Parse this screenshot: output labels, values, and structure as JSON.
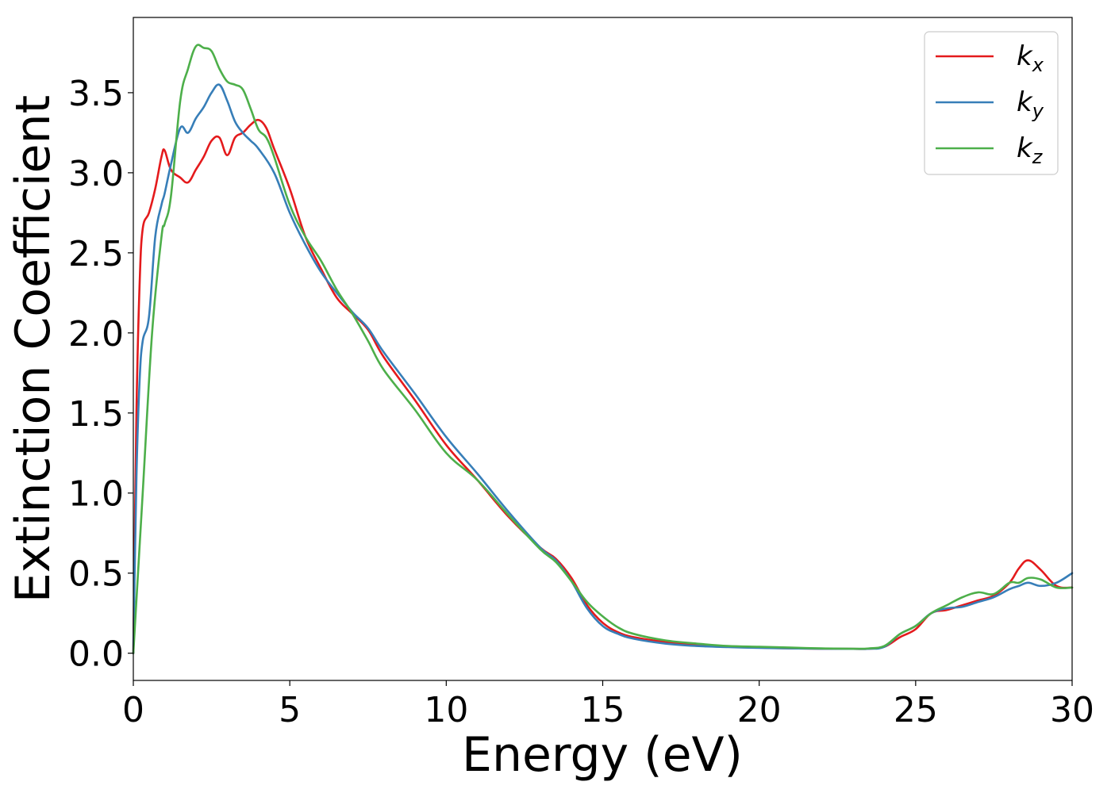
{
  "chart_data": {
    "type": "line",
    "title": "",
    "xlabel": "Energy (eV)",
    "ylabel": "Extinction Coefficient",
    "xlim": [
      0,
      30
    ],
    "ylim": [
      -0.17,
      3.97
    ],
    "xticks": [
      0,
      5,
      10,
      15,
      20,
      25,
      30
    ],
    "yticks": [
      0.0,
      0.5,
      1.0,
      1.5,
      2.0,
      2.5,
      3.0,
      3.5
    ],
    "xtick_labels": [
      "0",
      "5",
      "10",
      "15",
      "20",
      "25",
      "30"
    ],
    "ytick_labels": [
      "0.0",
      "0.5",
      "1.0",
      "1.5",
      "2.0",
      "2.5",
      "3.0",
      "3.5"
    ],
    "grid": false,
    "legend_position": "top-right",
    "series": [
      {
        "name": "k_x",
        "legend_base": "k",
        "legend_sub": "x",
        "color": "#e41a1c",
        "x": [
          0,
          0.1,
          0.2,
          0.3,
          0.5,
          0.7,
          0.9,
          1.0,
          1.2,
          1.5,
          1.75,
          2.0,
          2.25,
          2.5,
          2.75,
          3.0,
          3.25,
          3.5,
          3.75,
          4.0,
          4.25,
          4.5,
          5.0,
          5.5,
          6.0,
          6.5,
          7.0,
          7.5,
          8.0,
          9.0,
          10.0,
          11.0,
          12.0,
          13.0,
          13.5,
          14.0,
          14.5,
          15.0,
          15.5,
          16.0,
          17.0,
          18.0,
          19.0,
          20.0,
          21.0,
          22.0,
          23.0,
          23.5,
          24.0,
          24.5,
          25.0,
          25.5,
          26.0,
          26.5,
          27.0,
          27.5,
          28.0,
          28.3,
          28.6,
          29.0,
          29.5,
          30.0
        ],
        "y": [
          0.0,
          1.5,
          2.3,
          2.65,
          2.75,
          2.9,
          3.1,
          3.14,
          3.02,
          2.97,
          2.94,
          3.02,
          3.1,
          3.2,
          3.22,
          3.11,
          3.22,
          3.25,
          3.3,
          3.33,
          3.28,
          3.15,
          2.9,
          2.6,
          2.4,
          2.22,
          2.12,
          2.02,
          1.85,
          1.58,
          1.3,
          1.08,
          0.85,
          0.66,
          0.59,
          0.47,
          0.3,
          0.19,
          0.13,
          0.1,
          0.07,
          0.05,
          0.04,
          0.035,
          0.03,
          0.028,
          0.027,
          0.028,
          0.04,
          0.1,
          0.15,
          0.25,
          0.27,
          0.3,
          0.33,
          0.36,
          0.44,
          0.53,
          0.58,
          0.52,
          0.42,
          0.41
        ]
      },
      {
        "name": "k_y",
        "legend_base": "k",
        "legend_sub": "y",
        "color": "#377eb8",
        "x": [
          0,
          0.1,
          0.2,
          0.3,
          0.5,
          0.7,
          0.9,
          1.0,
          1.2,
          1.5,
          1.75,
          2.0,
          2.25,
          2.5,
          2.75,
          3.0,
          3.25,
          3.5,
          3.75,
          4.0,
          4.5,
          5.0,
          5.5,
          6.0,
          6.5,
          7.0,
          7.5,
          8.0,
          9.0,
          10.0,
          11.0,
          12.0,
          13.0,
          13.5,
          14.0,
          14.5,
          15.0,
          15.5,
          16.0,
          17.0,
          18.0,
          19.0,
          20.0,
          21.0,
          22.0,
          23.0,
          23.5,
          24.0,
          24.5,
          25.0,
          25.5,
          26.0,
          26.5,
          27.0,
          27.5,
          28.0,
          28.3,
          28.6,
          29.0,
          29.5,
          30.0
        ],
        "y": [
          0.0,
          1.1,
          1.7,
          1.95,
          2.1,
          2.6,
          2.8,
          2.87,
          3.05,
          3.28,
          3.25,
          3.34,
          3.41,
          3.5,
          3.55,
          3.45,
          3.32,
          3.25,
          3.2,
          3.15,
          3.0,
          2.75,
          2.55,
          2.38,
          2.25,
          2.13,
          2.03,
          1.88,
          1.62,
          1.35,
          1.12,
          0.88,
          0.66,
          0.58,
          0.45,
          0.28,
          0.17,
          0.12,
          0.09,
          0.06,
          0.045,
          0.038,
          0.033,
          0.03,
          0.028,
          0.027,
          0.028,
          0.04,
          0.12,
          0.17,
          0.25,
          0.28,
          0.29,
          0.32,
          0.35,
          0.4,
          0.42,
          0.44,
          0.42,
          0.44,
          0.5
        ]
      },
      {
        "name": "k_z",
        "legend_base": "k",
        "legend_sub": "z",
        "color": "#4daf4a",
        "x": [
          0,
          0.3,
          0.6,
          0.9,
          1.0,
          1.2,
          1.5,
          1.75,
          2.0,
          2.25,
          2.5,
          2.75,
          3.0,
          3.25,
          3.5,
          3.75,
          4.0,
          4.25,
          4.5,
          5.0,
          5.5,
          6.0,
          6.5,
          7.0,
          7.5,
          8.0,
          9.0,
          10.0,
          11.0,
          12.0,
          13.0,
          13.5,
          14.0,
          14.5,
          15.0,
          15.5,
          16.0,
          17.0,
          18.0,
          19.0,
          20.0,
          21.0,
          22.0,
          23.0,
          23.5,
          24.0,
          24.5,
          25.0,
          25.5,
          26.0,
          26.5,
          27.0,
          27.5,
          28.0,
          28.3,
          28.6,
          29.0,
          29.5,
          30.0
        ],
        "y": [
          0.0,
          1.0,
          2.0,
          2.6,
          2.68,
          2.85,
          3.45,
          3.65,
          3.79,
          3.78,
          3.76,
          3.65,
          3.57,
          3.55,
          3.52,
          3.4,
          3.27,
          3.22,
          3.1,
          2.8,
          2.6,
          2.45,
          2.27,
          2.12,
          1.95,
          1.77,
          1.52,
          1.25,
          1.08,
          0.86,
          0.65,
          0.57,
          0.45,
          0.32,
          0.23,
          0.16,
          0.12,
          0.08,
          0.06,
          0.045,
          0.04,
          0.035,
          0.03,
          0.028,
          0.03,
          0.045,
          0.12,
          0.17,
          0.25,
          0.3,
          0.35,
          0.38,
          0.37,
          0.44,
          0.44,
          0.47,
          0.46,
          0.41,
          0.41
        ]
      }
    ]
  }
}
